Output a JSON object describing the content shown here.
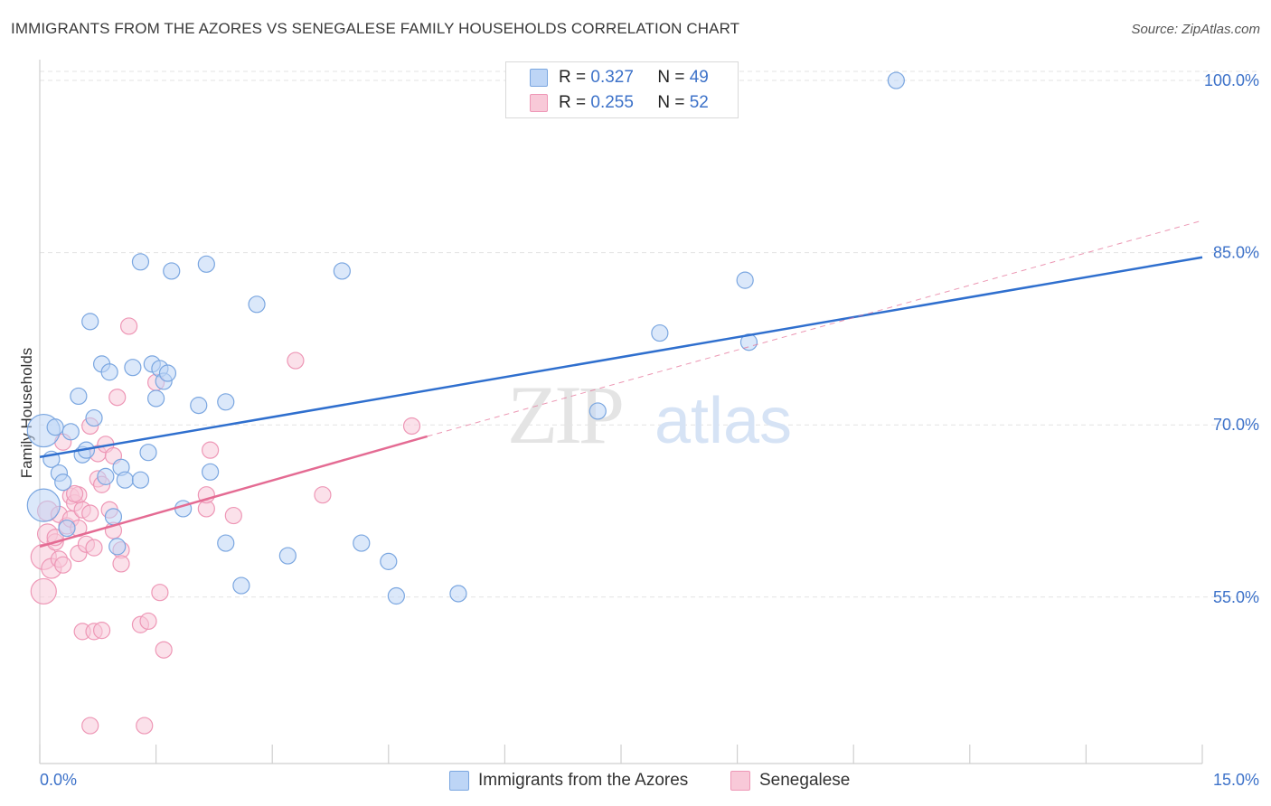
{
  "title": "IMMIGRANTS FROM THE AZORES VS SENEGALESE FAMILY HOUSEHOLDS CORRELATION CHART",
  "source": "Source: ZipAtlas.com",
  "watermark": {
    "zip": "ZIP",
    "atlas": "atlas"
  },
  "legend": {
    "r_label": "R =",
    "n_label": "N =",
    "items": [
      {
        "r": "0.327",
        "n": "49",
        "color": "#aecbf2",
        "border": "#7ba7e0"
      },
      {
        "r": "0.255",
        "n": "52",
        "color": "#f6bfd2",
        "border": "#ee93b4"
      }
    ]
  },
  "colors": {
    "blue_fill": "#bdd5f6",
    "blue_stroke": "#7aa6e0",
    "blue_line": "#2f6fce",
    "pink_fill": "#f8c9d8",
    "pink_stroke": "#ee97b6",
    "pink_line": "#e46b93",
    "grid": "#e3e3e3",
    "axis_text": "#3d72c9"
  },
  "chart_data": {
    "type": "scatter",
    "title": "IMMIGRANTS FROM THE AZORES VS SENEGALESE FAMILY HOUSEHOLDS CORRELATION CHART",
    "xlabel": "",
    "ylabel": "Family Households",
    "xlim": [
      0,
      15
    ],
    "ylim": [
      40.5,
      101.5
    ],
    "x_tick_labels": [
      "0.0%",
      "15.0%"
    ],
    "y_ticks": [
      55,
      70,
      85,
      100
    ],
    "y_tick_labels": [
      "55.0%",
      "70.0%",
      "85.0%",
      "100.0%"
    ],
    "grid": true,
    "series": [
      {
        "name": "Immigrants from the Azores",
        "r": 0.327,
        "n": 49,
        "trend": {
          "x": [
            0,
            15
          ],
          "y": [
            67.2,
            84.6
          ],
          "dashed_extension": false
        },
        "points": [
          {
            "x": 0.05,
            "y": 69.5,
            "s": 18
          },
          {
            "x": 0.05,
            "y": 63.0,
            "s": 18
          },
          {
            "x": 0.15,
            "y": 67.0,
            "s": 9
          },
          {
            "x": 0.2,
            "y": 69.8,
            "s": 9
          },
          {
            "x": 0.25,
            "y": 65.8,
            "s": 9
          },
          {
            "x": 0.3,
            "y": 65.0,
            "s": 9
          },
          {
            "x": 0.35,
            "y": 61.0,
            "s": 9
          },
          {
            "x": 0.4,
            "y": 69.4,
            "s": 9
          },
          {
            "x": 0.5,
            "y": 72.5,
            "s": 9
          },
          {
            "x": 0.55,
            "y": 67.4,
            "s": 9
          },
          {
            "x": 0.6,
            "y": 67.8,
            "s": 9
          },
          {
            "x": 0.65,
            "y": 79.0,
            "s": 9
          },
          {
            "x": 0.7,
            "y": 70.6,
            "s": 9
          },
          {
            "x": 0.8,
            "y": 75.3,
            "s": 9
          },
          {
            "x": 0.85,
            "y": 65.5,
            "s": 9
          },
          {
            "x": 0.9,
            "y": 74.6,
            "s": 9
          },
          {
            "x": 0.95,
            "y": 62.0,
            "s": 9
          },
          {
            "x": 1.0,
            "y": 59.4,
            "s": 9
          },
          {
            "x": 1.05,
            "y": 66.3,
            "s": 9
          },
          {
            "x": 1.1,
            "y": 65.2,
            "s": 9
          },
          {
            "x": 1.2,
            "y": 75.0,
            "s": 9
          },
          {
            "x": 1.3,
            "y": 84.2,
            "s": 9
          },
          {
            "x": 1.3,
            "y": 65.2,
            "s": 9
          },
          {
            "x": 1.4,
            "y": 67.6,
            "s": 9
          },
          {
            "x": 1.45,
            "y": 75.3,
            "s": 9
          },
          {
            "x": 1.5,
            "y": 72.3,
            "s": 9
          },
          {
            "x": 1.55,
            "y": 74.9,
            "s": 9
          },
          {
            "x": 1.6,
            "y": 73.8,
            "s": 9
          },
          {
            "x": 1.65,
            "y": 74.5,
            "s": 9
          },
          {
            "x": 1.7,
            "y": 83.4,
            "s": 9
          },
          {
            "x": 1.85,
            "y": 62.7,
            "s": 9
          },
          {
            "x": 2.05,
            "y": 71.7,
            "s": 9
          },
          {
            "x": 2.15,
            "y": 84.0,
            "s": 9
          },
          {
            "x": 2.2,
            "y": 65.9,
            "s": 9
          },
          {
            "x": 2.4,
            "y": 72.0,
            "s": 9
          },
          {
            "x": 2.4,
            "y": 59.7,
            "s": 9
          },
          {
            "x": 2.6,
            "y": 56.0,
            "s": 9
          },
          {
            "x": 2.8,
            "y": 80.5,
            "s": 9
          },
          {
            "x": 3.2,
            "y": 58.6,
            "s": 9
          },
          {
            "x": 3.9,
            "y": 83.4,
            "s": 9
          },
          {
            "x": 4.15,
            "y": 59.7,
            "s": 9
          },
          {
            "x": 4.5,
            "y": 58.1,
            "s": 9
          },
          {
            "x": 4.6,
            "y": 55.1,
            "s": 9
          },
          {
            "x": 5.4,
            "y": 55.3,
            "s": 9
          },
          {
            "x": 7.2,
            "y": 71.2,
            "s": 9
          },
          {
            "x": 8.0,
            "y": 78.0,
            "s": 9
          },
          {
            "x": 9.1,
            "y": 82.6,
            "s": 9
          },
          {
            "x": 9.15,
            "y": 77.2,
            "s": 9
          },
          {
            "x": 11.05,
            "y": 100.0,
            "s": 9
          }
        ]
      },
      {
        "name": "Senegalese",
        "r": 0.255,
        "n": 52,
        "trend": {
          "x": [
            0,
            5
          ],
          "y": [
            59.4,
            69.0
          ],
          "extend_to_x": 15,
          "extend_to_y": 87.8
        },
        "points": [
          {
            "x": 0.05,
            "y": 58.5,
            "s": 14
          },
          {
            "x": 0.05,
            "y": 55.5,
            "s": 14
          },
          {
            "x": 0.1,
            "y": 62.5,
            "s": 11
          },
          {
            "x": 0.1,
            "y": 60.5,
            "s": 11
          },
          {
            "x": 0.15,
            "y": 57.5,
            "s": 11
          },
          {
            "x": 0.2,
            "y": 59.8,
            "s": 9
          },
          {
            "x": 0.2,
            "y": 60.2,
            "s": 9
          },
          {
            "x": 0.25,
            "y": 62.2,
            "s": 9
          },
          {
            "x": 0.25,
            "y": 58.3,
            "s": 9
          },
          {
            "x": 0.3,
            "y": 68.5,
            "s": 9
          },
          {
            "x": 0.3,
            "y": 57.8,
            "s": 9
          },
          {
            "x": 0.35,
            "y": 61.2,
            "s": 9
          },
          {
            "x": 0.4,
            "y": 63.8,
            "s": 9
          },
          {
            "x": 0.4,
            "y": 61.8,
            "s": 9
          },
          {
            "x": 0.45,
            "y": 63.2,
            "s": 9
          },
          {
            "x": 0.5,
            "y": 61.0,
            "s": 9
          },
          {
            "x": 0.5,
            "y": 58.8,
            "s": 9
          },
          {
            "x": 0.5,
            "y": 63.9,
            "s": 9
          },
          {
            "x": 0.55,
            "y": 62.6,
            "s": 9
          },
          {
            "x": 0.55,
            "y": 52.0,
            "s": 9
          },
          {
            "x": 0.6,
            "y": 59.6,
            "s": 9
          },
          {
            "x": 0.65,
            "y": 62.3,
            "s": 9
          },
          {
            "x": 0.65,
            "y": 69.9,
            "s": 9
          },
          {
            "x": 0.65,
            "y": 43.8,
            "s": 9
          },
          {
            "x": 0.7,
            "y": 59.3,
            "s": 9
          },
          {
            "x": 0.75,
            "y": 67.5,
            "s": 9
          },
          {
            "x": 0.7,
            "y": 52.0,
            "s": 9
          },
          {
            "x": 0.75,
            "y": 65.3,
            "s": 9
          },
          {
            "x": 0.8,
            "y": 64.8,
            "s": 9
          },
          {
            "x": 0.8,
            "y": 52.1,
            "s": 9
          },
          {
            "x": 0.85,
            "y": 68.3,
            "s": 9
          },
          {
            "x": 0.9,
            "y": 62.6,
            "s": 9
          },
          {
            "x": 0.95,
            "y": 60.8,
            "s": 9
          },
          {
            "x": 0.95,
            "y": 67.3,
            "s": 9
          },
          {
            "x": 1.0,
            "y": 72.4,
            "s": 9
          },
          {
            "x": 1.05,
            "y": 59.1,
            "s": 9
          },
          {
            "x": 1.05,
            "y": 57.9,
            "s": 9
          },
          {
            "x": 1.15,
            "y": 78.6,
            "s": 9
          },
          {
            "x": 1.3,
            "y": 52.6,
            "s": 9
          },
          {
            "x": 1.35,
            "y": 43.8,
            "s": 9
          },
          {
            "x": 1.4,
            "y": 52.9,
            "s": 9
          },
          {
            "x": 1.5,
            "y": 73.7,
            "s": 9
          },
          {
            "x": 1.55,
            "y": 55.4,
            "s": 9
          },
          {
            "x": 1.6,
            "y": 50.4,
            "s": 9
          },
          {
            "x": 2.15,
            "y": 62.7,
            "s": 9
          },
          {
            "x": 2.15,
            "y": 63.9,
            "s": 9
          },
          {
            "x": 2.2,
            "y": 67.8,
            "s": 9
          },
          {
            "x": 2.5,
            "y": 62.1,
            "s": 9
          },
          {
            "x": 3.3,
            "y": 75.6,
            "s": 9
          },
          {
            "x": 3.65,
            "y": 63.9,
            "s": 9
          },
          {
            "x": 4.8,
            "y": 69.9,
            "s": 9
          },
          {
            "x": 0.45,
            "y": 64.0,
            "s": 9
          }
        ]
      }
    ]
  }
}
